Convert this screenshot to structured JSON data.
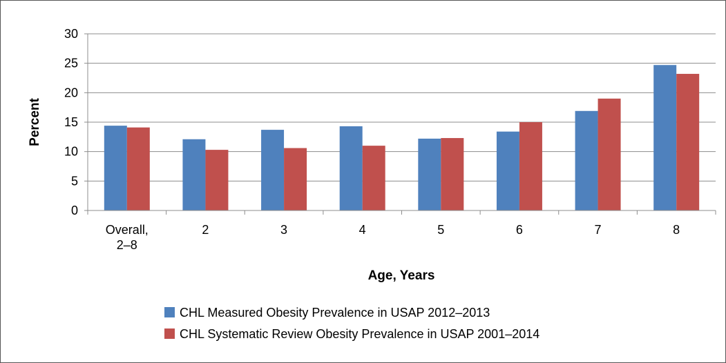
{
  "chart_data": {
    "type": "bar",
    "title": "",
    "xlabel": "Age, Years",
    "ylabel": "Percent",
    "ylim": [
      0,
      30
    ],
    "yticks": [
      0,
      5,
      10,
      15,
      20,
      25,
      30
    ],
    "grid": true,
    "legend_position": "bottom",
    "categories": [
      [
        "Overall,",
        "2–8"
      ],
      [
        "2"
      ],
      [
        "3"
      ],
      [
        "4"
      ],
      [
        "5"
      ],
      [
        "6"
      ],
      [
        "7"
      ],
      [
        "8"
      ]
    ],
    "series": [
      {
        "name": "CHL Measured Obesity Prevalence in USAP 2012–2013",
        "color": "#4F81BD",
        "values": [
          14.4,
          12.1,
          13.7,
          14.3,
          12.2,
          13.4,
          16.9,
          24.7
        ]
      },
      {
        "name": "CHL Systematic Review Obesity Prevalence in USAP 2001–2014",
        "color": "#C0504D",
        "values": [
          14.1,
          10.3,
          10.6,
          11.0,
          12.3,
          15.0,
          19.0,
          23.2
        ]
      }
    ]
  }
}
